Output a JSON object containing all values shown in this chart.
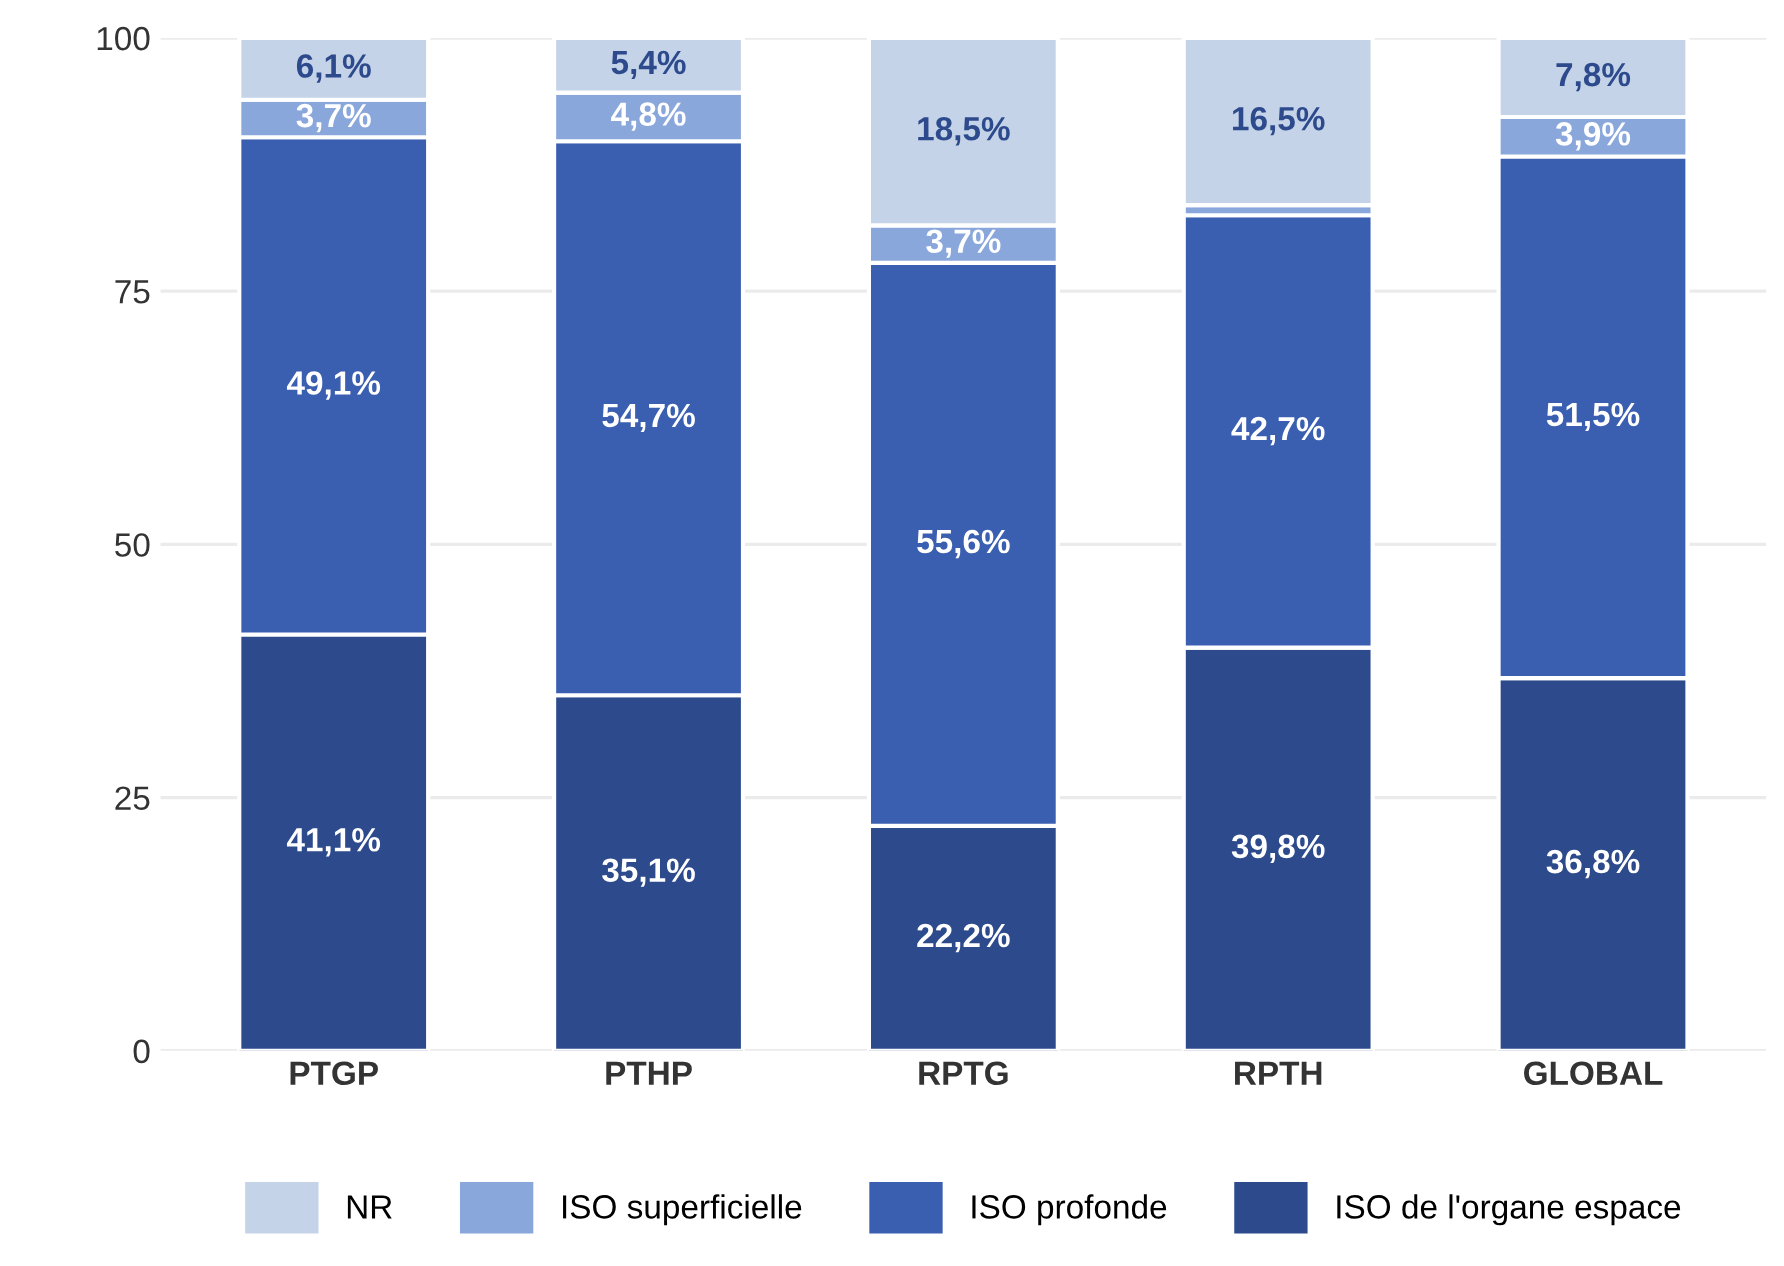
{
  "chart_data": {
    "type": "bar",
    "stacked": true,
    "categories": [
      "PTGP",
      "PTHP",
      "RPTG",
      "RPTH",
      "GLOBAL"
    ],
    "ylim": [
      0,
      100
    ],
    "yticks": [
      0,
      25,
      50,
      75,
      100
    ],
    "grid": "y",
    "legend": "bottom",
    "series": [
      {
        "name": "ISO de l'organe espace",
        "color": "#2c4a8c",
        "values": [
          41.1,
          35.1,
          22.2,
          39.8,
          36.8
        ],
        "value_labels": [
          "41,1%",
          "35,1%",
          "22,2%",
          "39,8%",
          "36,8%"
        ]
      },
      {
        "name": "ISO profonde",
        "color": "#3a5fb0",
        "values": [
          49.1,
          54.7,
          55.6,
          42.7,
          51.5
        ],
        "value_labels": [
          "49,1%",
          "54,7%",
          "55,6%",
          "42,7%",
          "51,5%"
        ]
      },
      {
        "name": "ISO superficielle",
        "color": "#8aa7dc",
        "values": [
          3.7,
          4.8,
          3.7,
          1.0,
          3.9
        ],
        "value_labels": [
          "3,7%",
          "4,8%",
          "3,7%",
          null,
          "3,9%"
        ]
      },
      {
        "name": "NR",
        "color": "#c5d3e8",
        "values": [
          6.1,
          5.4,
          18.5,
          16.5,
          7.8
        ],
        "value_labels": [
          "6,1%",
          "5,4%",
          "18,5%",
          "16,5%",
          "7,8%"
        ]
      }
    ]
  }
}
